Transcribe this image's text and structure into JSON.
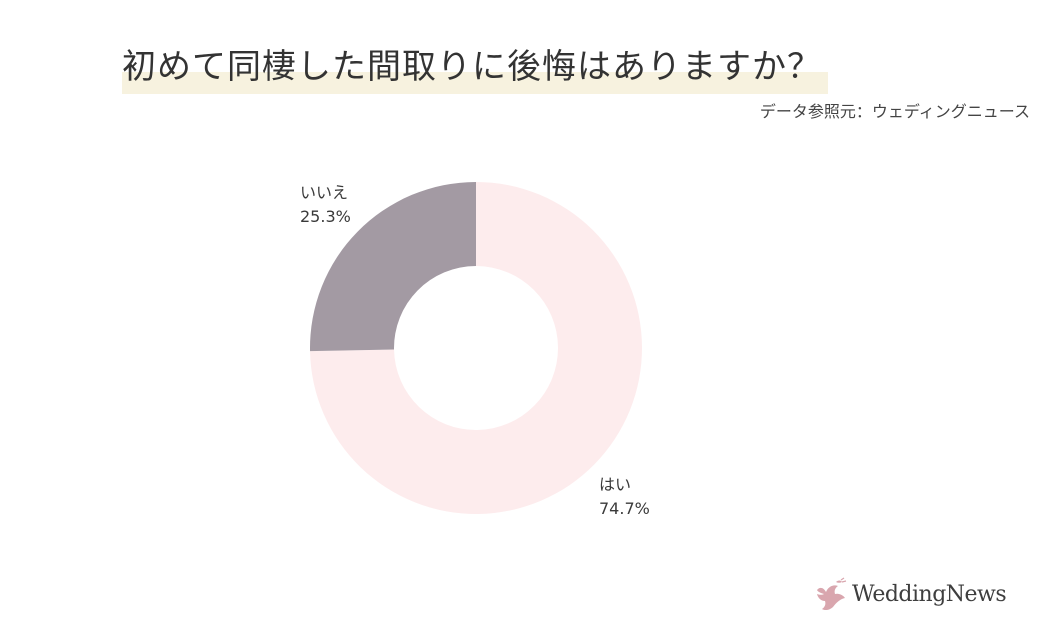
{
  "header": {
    "title": "初めて同棲した間取りに後悔はありますか？",
    "source": "データ参照元：ウェディングニュース"
  },
  "colors": {
    "yes": "#fdeced",
    "no": "#a39aa3",
    "title_highlight": "#f7f2df"
  },
  "chart_data": {
    "type": "pie",
    "style": "donut",
    "title": "初めて同棲した間取りに後悔はありますか？",
    "series": [
      {
        "name": "はい",
        "value": 74.7,
        "label": "74.7%"
      },
      {
        "name": "いいえ",
        "value": 25.3,
        "label": "25.3%"
      }
    ],
    "start_angle": "12 o'clock",
    "direction": "clockwise",
    "legend": "none (labels beside slices)"
  },
  "logo": {
    "text": "WeddingNews",
    "icon": "bird-icon"
  }
}
